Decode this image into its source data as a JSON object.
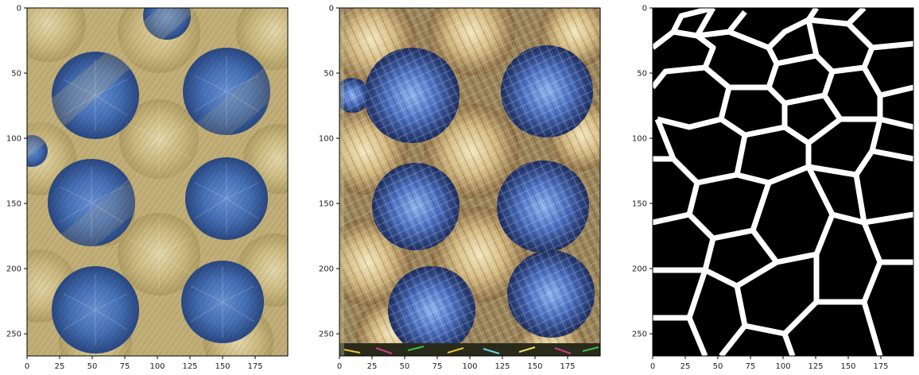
{
  "figure": {
    "panels": [
      {
        "name": "input-photo",
        "content": "Photograph of crocheted knitted fabric with alternating tan/cream and blue diamond starburst stitch pattern",
        "x_ticks": [
          "0",
          "25",
          "50",
          "75",
          "100",
          "125",
          "150",
          "175"
        ],
        "y_ticks": [
          "0",
          "50",
          "100",
          "150",
          "200",
          "250"
        ]
      },
      {
        "name": "synthesized-texture",
        "content": "Neural style/texture synthesis output: tan and blue leafy crumpled pattern with colorful noise at edges",
        "x_ticks": [
          "0",
          "25",
          "50",
          "75",
          "100",
          "125",
          "150",
          "175"
        ],
        "y_ticks": [
          "0",
          "50",
          "100",
          "150",
          "200",
          "250"
        ]
      },
      {
        "name": "voronoi-edge-map",
        "content": "White polygon outlines on black background resembling a Voronoi cell edge map",
        "x_ticks": [
          "0",
          "25",
          "50",
          "75",
          "100",
          "125",
          "150",
          "175"
        ],
        "y_ticks": [
          "0",
          "50",
          "100",
          "150",
          "200",
          "250"
        ]
      }
    ],
    "colors": {
      "knit_tan": "#d8c486",
      "knit_tan_light": "#e8d9a6",
      "knit_blue": "#4b78c2",
      "knit_blue_dark": "#2e4f8f",
      "edge_white": "#ffffff",
      "edge_bg": "#000000"
    }
  }
}
